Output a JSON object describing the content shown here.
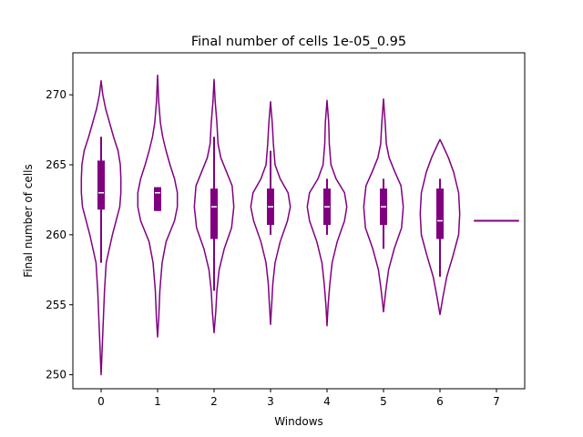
{
  "chart_data": {
    "type": "violin",
    "title": "Final number of cells 1e-05_0.95",
    "xlabel": "Windows",
    "ylabel": "Final number of cells",
    "xlim": [
      -0.5,
      7.5
    ],
    "ylim": [
      249,
      273
    ],
    "x_ticks": [
      "0",
      "1",
      "2",
      "3",
      "4",
      "5",
      "6",
      "7"
    ],
    "y_ticks": [
      "250",
      "255",
      "260",
      "265",
      "270"
    ],
    "grid": false,
    "color": "#800080",
    "violins": [
      {
        "category": "0",
        "min": 250,
        "max": 271,
        "q1": 261.8,
        "median": 263,
        "q3": 265.3,
        "whisker_low": 258,
        "whisker_high": 267,
        "profile": [
          [
            250,
            0.0
          ],
          [
            252,
            0.02
          ],
          [
            254,
            0.04
          ],
          [
            256,
            0.06
          ],
          [
            258,
            0.09
          ],
          [
            260,
            0.2
          ],
          [
            262,
            0.33
          ],
          [
            263,
            0.35
          ],
          [
            264,
            0.35
          ],
          [
            265,
            0.34
          ],
          [
            266,
            0.3
          ],
          [
            267,
            0.22
          ],
          [
            268,
            0.15
          ],
          [
            269,
            0.08
          ],
          [
            270,
            0.03
          ],
          [
            271,
            0.0
          ]
        ]
      },
      {
        "category": "1",
        "min": 252.7,
        "max": 271.4,
        "q1": 261.7,
        "median": 263,
        "q3": 263.4,
        "whisker_low": 261.7,
        "whisker_high": 263.4,
        "profile": [
          [
            252.7,
            0.0
          ],
          [
            254,
            0.02
          ],
          [
            256,
            0.04
          ],
          [
            258,
            0.08
          ],
          [
            259.5,
            0.15
          ],
          [
            261,
            0.3
          ],
          [
            262,
            0.35
          ],
          [
            263,
            0.35
          ],
          [
            264,
            0.3
          ],
          [
            265,
            0.22
          ],
          [
            266,
            0.15
          ],
          [
            267,
            0.09
          ],
          [
            268,
            0.05
          ],
          [
            269.5,
            0.02
          ],
          [
            271.4,
            0.0
          ]
        ]
      },
      {
        "category": "2",
        "min": 253,
        "max": 271.1,
        "q1": 259.7,
        "median": 262,
        "q3": 263.3,
        "whisker_low": 256,
        "whisker_high": 267,
        "profile": [
          [
            253,
            0.0
          ],
          [
            254.5,
            0.03
          ],
          [
            256,
            0.05
          ],
          [
            257.5,
            0.09
          ],
          [
            259,
            0.18
          ],
          [
            260.5,
            0.31
          ],
          [
            262,
            0.35
          ],
          [
            263.5,
            0.32
          ],
          [
            264.5,
            0.22
          ],
          [
            265.5,
            0.12
          ],
          [
            266.5,
            0.07
          ],
          [
            268,
            0.05
          ],
          [
            269.5,
            0.02
          ],
          [
            271.1,
            0.0
          ]
        ]
      },
      {
        "category": "3",
        "min": 253.6,
        "max": 269.5,
        "q1": 260.7,
        "median": 262,
        "q3": 263.3,
        "whisker_low": 260,
        "whisker_high": 266,
        "profile": [
          [
            253.6,
            0.0
          ],
          [
            255,
            0.02
          ],
          [
            256.5,
            0.04
          ],
          [
            258,
            0.08
          ],
          [
            259.5,
            0.17
          ],
          [
            261,
            0.3
          ],
          [
            262,
            0.35
          ],
          [
            263,
            0.31
          ],
          [
            264,
            0.17
          ],
          [
            265,
            0.08
          ],
          [
            266.5,
            0.05
          ],
          [
            268,
            0.03
          ],
          [
            269.5,
            0.0
          ]
        ]
      },
      {
        "category": "4",
        "min": 253.5,
        "max": 269.6,
        "q1": 260.7,
        "median": 262,
        "q3": 263.3,
        "whisker_low": 260,
        "whisker_high": 264,
        "profile": [
          [
            253.5,
            0.0
          ],
          [
            255,
            0.02
          ],
          [
            256.5,
            0.05
          ],
          [
            258,
            0.09
          ],
          [
            259.5,
            0.18
          ],
          [
            261,
            0.31
          ],
          [
            262,
            0.35
          ],
          [
            263,
            0.31
          ],
          [
            264,
            0.16
          ],
          [
            265,
            0.07
          ],
          [
            266.5,
            0.04
          ],
          [
            268,
            0.03
          ],
          [
            269.6,
            0.0
          ]
        ]
      },
      {
        "category": "5",
        "min": 254.5,
        "max": 269.7,
        "q1": 260.7,
        "median": 262,
        "q3": 263.3,
        "whisker_low": 259,
        "whisker_high": 264,
        "profile": [
          [
            254.5,
            0.0
          ],
          [
            256,
            0.04
          ],
          [
            257.5,
            0.09
          ],
          [
            259,
            0.19
          ],
          [
            260.5,
            0.32
          ],
          [
            262,
            0.35
          ],
          [
            263.5,
            0.31
          ],
          [
            264.5,
            0.2
          ],
          [
            265.5,
            0.1
          ],
          [
            266.5,
            0.05
          ],
          [
            268,
            0.03
          ],
          [
            269.7,
            0.0
          ]
        ]
      },
      {
        "category": "6",
        "min": 254.3,
        "max": 266.8,
        "q1": 259.7,
        "median": 261,
        "q3": 263.3,
        "whisker_low": 257,
        "whisker_high": 264,
        "profile": [
          [
            254.3,
            0.0
          ],
          [
            255.5,
            0.05
          ],
          [
            257,
            0.12
          ],
          [
            258.5,
            0.23
          ],
          [
            260,
            0.33
          ],
          [
            261.5,
            0.35
          ],
          [
            263,
            0.33
          ],
          [
            264.5,
            0.24
          ],
          [
            265.5,
            0.15
          ],
          [
            266.3,
            0.06
          ],
          [
            266.8,
            0.0
          ]
        ]
      },
      {
        "category": "7",
        "single_value": 261
      }
    ]
  }
}
